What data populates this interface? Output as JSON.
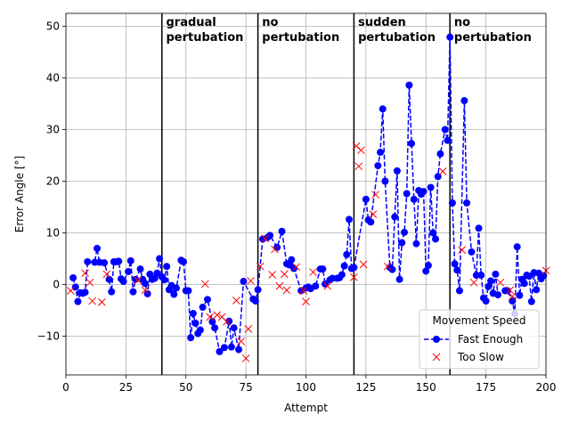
{
  "chart_data": {
    "type": "line",
    "title": "",
    "xlabel": "Attempt",
    "ylabel": "Error Angle [°]",
    "xlim": [
      0,
      200
    ],
    "ylim": [
      -17.5,
      52.5
    ],
    "xticks": [
      0,
      25,
      50,
      75,
      100,
      125,
      150,
      175,
      200
    ],
    "yticks": [
      -10,
      0,
      10,
      20,
      30,
      40,
      50
    ],
    "grid": true,
    "phase_boundaries": [
      40,
      80,
      120,
      160
    ],
    "annotations": [
      {
        "x": 41,
        "lines": [
          "gradual",
          "pertubation"
        ]
      },
      {
        "x": 81,
        "lines": [
          "no",
          "pertubation"
        ]
      },
      {
        "x": 121,
        "lines": [
          "sudden",
          "pertubation"
        ]
      },
      {
        "x": 161,
        "lines": [
          "no",
          "pertubation"
        ]
      }
    ],
    "legend": {
      "title": "Movement Speed",
      "placement": "lower right",
      "entries": [
        "Fast Enough",
        "Too Slow"
      ]
    },
    "series": [
      {
        "name": "Fast Enough",
        "style": "dashed-line-circles",
        "color": "#0000ff",
        "points": [
          [
            3,
            1.3
          ],
          [
            4,
            -0.5
          ],
          [
            5,
            -3.3
          ],
          [
            6,
            -1.6
          ],
          [
            7,
            -1.7
          ],
          [
            8,
            -1.5
          ],
          [
            9,
            4.4
          ],
          [
            12,
            4.3
          ],
          [
            13,
            7.0
          ],
          [
            14,
            4.3
          ],
          [
            16,
            4.2
          ],
          [
            18,
            1.0
          ],
          [
            19,
            -1.4
          ],
          [
            20,
            4.4
          ],
          [
            21,
            4.4
          ],
          [
            22,
            4.5
          ],
          [
            23,
            1.1
          ],
          [
            24,
            0.6
          ],
          [
            26,
            2.5
          ],
          [
            27,
            4.6
          ],
          [
            28,
            -1.4
          ],
          [
            29,
            1.0
          ],
          [
            31,
            3.0
          ],
          [
            32,
            1.0
          ],
          [
            33,
            0.2
          ],
          [
            34,
            -1.8
          ],
          [
            35,
            2.0
          ],
          [
            36,
            1.0
          ],
          [
            37,
            1.2
          ],
          [
            38,
            2.2
          ],
          [
            39,
            5.0
          ],
          [
            40,
            1.5
          ],
          [
            41,
            0.9
          ],
          [
            42,
            3.5
          ],
          [
            43,
            -1.0
          ],
          [
            44,
            -0.2
          ],
          [
            45,
            -1.9
          ],
          [
            46,
            -0.7
          ],
          [
            48,
            4.7
          ],
          [
            49,
            4.4
          ],
          [
            50,
            -1.2
          ],
          [
            51,
            -1.2
          ],
          [
            52,
            -10.3
          ],
          [
            53,
            -5.6
          ],
          [
            54,
            -7.5
          ],
          [
            55,
            -9.5
          ],
          [
            56,
            -8.8
          ],
          [
            57,
            -4.4
          ],
          [
            59,
            -2.9
          ],
          [
            61,
            -7.2
          ],
          [
            62,
            -8.4
          ],
          [
            64,
            -13.0
          ],
          [
            66,
            -12.2
          ],
          [
            68,
            -7.1
          ],
          [
            69,
            -12.1
          ],
          [
            70,
            -8.4
          ],
          [
            72,
            -12.6
          ],
          [
            74,
            0.6
          ],
          [
            78,
            -2.8
          ],
          [
            79,
            -3.2
          ],
          [
            80,
            -1.0
          ],
          [
            82,
            8.8
          ],
          [
            84,
            9.1
          ],
          [
            85,
            9.5
          ],
          [
            88,
            7.2
          ],
          [
            90,
            10.3
          ],
          [
            92,
            4.0
          ],
          [
            93,
            3.8
          ],
          [
            94,
            4.8
          ],
          [
            95,
            3.1
          ],
          [
            98,
            -1.2
          ],
          [
            100,
            -0.7
          ],
          [
            101,
            -0.5
          ],
          [
            102,
            -0.8
          ],
          [
            104,
            -0.3
          ],
          [
            106,
            3.0
          ],
          [
            107,
            3.0
          ],
          [
            108,
            0.1
          ],
          [
            110,
            0.9
          ],
          [
            111,
            1.2
          ],
          [
            113,
            1.2
          ],
          [
            114,
            1.3
          ],
          [
            115,
            1.9
          ],
          [
            116,
            3.6
          ],
          [
            117,
            5.8
          ],
          [
            118,
            12.6
          ],
          [
            119,
            3.1
          ],
          [
            120,
            3.3
          ],
          [
            125,
            16.5
          ],
          [
            126,
            12.5
          ],
          [
            127,
            12.1
          ],
          [
            130,
            23.0
          ],
          [
            131,
            25.6
          ],
          [
            132,
            34.0
          ],
          [
            133,
            20.0
          ],
          [
            135,
            3.3
          ],
          [
            136,
            2.9
          ],
          [
            137,
            13.1
          ],
          [
            138,
            22.0
          ],
          [
            139,
            1.0
          ],
          [
            140,
            8.1
          ],
          [
            141,
            10.1
          ],
          [
            142,
            17.6
          ],
          [
            143,
            38.6
          ],
          [
            144,
            27.3
          ],
          [
            145,
            16.5
          ],
          [
            146,
            7.9
          ],
          [
            147,
            18.2
          ],
          [
            148,
            17.5
          ],
          [
            149,
            18.0
          ],
          [
            150,
            2.6
          ],
          [
            151,
            3.7
          ],
          [
            152,
            18.8
          ],
          [
            153,
            10.0
          ],
          [
            154,
            8.8
          ],
          [
            155,
            20.9
          ],
          [
            156,
            25.3
          ],
          [
            158,
            30.0
          ],
          [
            159,
            27.9
          ],
          [
            160,
            47.9
          ],
          [
            161,
            15.8
          ],
          [
            162,
            4.0
          ],
          [
            163,
            2.8
          ],
          [
            164,
            -1.2
          ],
          [
            166,
            35.6
          ],
          [
            167,
            15.8
          ],
          [
            169,
            6.3
          ],
          [
            171,
            1.8
          ],
          [
            172,
            10.9
          ],
          [
            173,
            1.8
          ],
          [
            174,
            -2.6
          ],
          [
            175,
            -3.2
          ],
          [
            176,
            -0.4
          ],
          [
            177,
            0.7
          ],
          [
            178,
            -1.7
          ],
          [
            179,
            2.0
          ],
          [
            180,
            -2.0
          ],
          [
            183,
            -1.2
          ],
          [
            184,
            -1.2
          ],
          [
            186,
            -3.2
          ],
          [
            187,
            -5.7
          ],
          [
            188,
            7.3
          ],
          [
            189,
            -2.1
          ],
          [
            190,
            1.0
          ],
          [
            191,
            0.2
          ],
          [
            192,
            1.8
          ],
          [
            193,
            1.6
          ],
          [
            194,
            -3.3
          ],
          [
            195,
            2.3
          ],
          [
            196,
            -1.0
          ],
          [
            197,
            2.2
          ],
          [
            198,
            1.1
          ],
          [
            199,
            1.7
          ]
        ]
      },
      {
        "name": "Too Slow",
        "style": "x-markers",
        "color": "#ff0000",
        "points": [
          [
            2,
            -1.2
          ],
          [
            8,
            2.2
          ],
          [
            10,
            0.4
          ],
          [
            11,
            -3.2
          ],
          [
            15,
            -3.4
          ],
          [
            17,
            2.0
          ],
          [
            30,
            0.8
          ],
          [
            33,
            -1.1
          ],
          [
            58,
            0.1
          ],
          [
            60,
            -6.3
          ],
          [
            63,
            -5.9
          ],
          [
            65,
            -6.3
          ],
          [
            67,
            -7.2
          ],
          [
            71,
            -3.1
          ],
          [
            73,
            -11.0
          ],
          [
            75,
            -14.3
          ],
          [
            76,
            -8.6
          ],
          [
            77,
            0.7
          ],
          [
            81,
            3.5
          ],
          [
            83,
            8.9
          ],
          [
            86,
            1.9
          ],
          [
            87,
            6.8
          ],
          [
            89,
            -0.3
          ],
          [
            91,
            2.0
          ],
          [
            92,
            -1.1
          ],
          [
            96,
            3.4
          ],
          [
            99,
            -1.2
          ],
          [
            100,
            -3.3
          ],
          [
            103,
            2.4
          ],
          [
            109,
            -0.3
          ],
          [
            120,
            1.4
          ],
          [
            121,
            26.8
          ],
          [
            122,
            22.9
          ],
          [
            123,
            26.0
          ],
          [
            124,
            3.9
          ],
          [
            128,
            13.6
          ],
          [
            129,
            17.4
          ],
          [
            134,
            3.5
          ],
          [
            157,
            21.9
          ],
          [
            165,
            6.7
          ],
          [
            170,
            0.4
          ],
          [
            181,
            0.4
          ],
          [
            185,
            -1.1
          ],
          [
            186,
            -2.3
          ],
          [
            200,
            2.7
          ]
        ]
      }
    ]
  }
}
